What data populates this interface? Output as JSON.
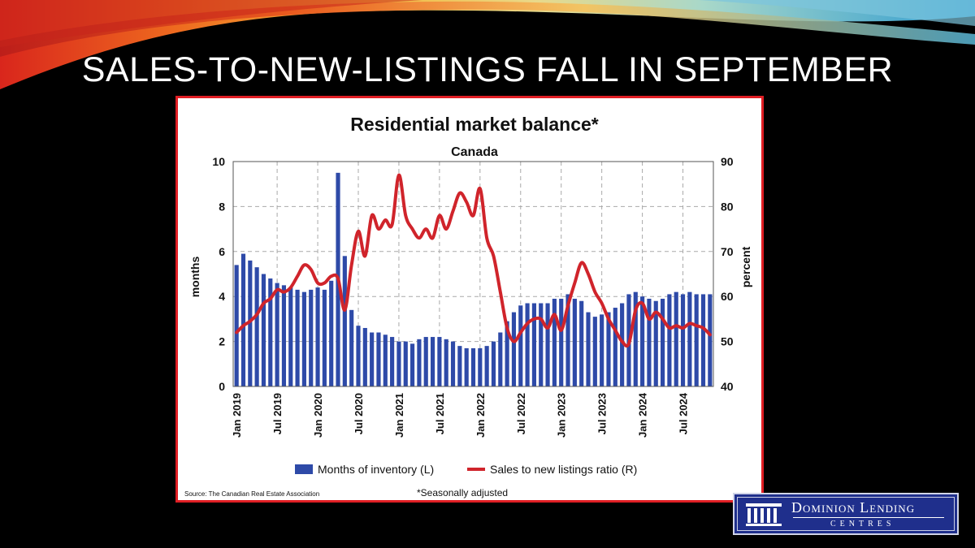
{
  "slide": {
    "title": "SALES-TO-NEW-LISTINGS FALL IN SEPTEMBER"
  },
  "logo": {
    "line1": "Dominion Lending",
    "line2": "CENTRES"
  },
  "chart_data": {
    "type": "bar+line",
    "title": "Residential market balance*",
    "subtitle": "Canada",
    "ylabel_left": "months",
    "ylabel_right": "percent",
    "ylim_left": [
      0,
      10
    ],
    "ylim_right": [
      40,
      90
    ],
    "yticks_left": [
      "0",
      "2",
      "4",
      "6",
      "8",
      "10"
    ],
    "yticks_right": [
      "40",
      "50",
      "60",
      "70",
      "80",
      "90"
    ],
    "xtick_labels": [
      "Jan 2019",
      "Jul 2019",
      "Jan 2020",
      "Jul 2020",
      "Jan 2021",
      "Jul 2021",
      "Jan 2022",
      "Jul 2022",
      "Jan 2023",
      "Jul 2023",
      "Jan 2024",
      "Jul 2024"
    ],
    "grid": true,
    "legend_position": "bottom",
    "source": "Source: The Canadian Real Estate Association",
    "footnote": "*Seasonally adjusted",
    "series": [
      {
        "name": "Months of inventory (L)",
        "axis": "left",
        "type": "bar",
        "color": "#2e4aa8",
        "values": [
          5.4,
          5.9,
          5.6,
          5.3,
          5.0,
          4.8,
          4.6,
          4.5,
          4.4,
          4.3,
          4.2,
          4.3,
          4.4,
          4.3,
          4.7,
          9.5,
          5.8,
          3.4,
          2.7,
          2.6,
          2.4,
          2.4,
          2.3,
          2.2,
          2.0,
          2.0,
          1.9,
          2.1,
          2.2,
          2.2,
          2.2,
          2.1,
          2.0,
          1.8,
          1.7,
          1.7,
          1.7,
          1.8,
          2.0,
          2.4,
          2.9,
          3.3,
          3.6,
          3.7,
          3.7,
          3.7,
          3.7,
          3.9,
          3.9,
          4.1,
          3.9,
          3.8,
          3.3,
          3.1,
          3.2,
          3.3,
          3.5,
          3.7,
          4.1,
          4.2,
          4.0,
          3.9,
          3.8,
          3.9,
          4.1,
          4.2,
          4.1,
          4.2,
          4.1,
          4.1,
          4.1
        ]
      },
      {
        "name": "Sales to new listings ratio (R)",
        "axis": "right",
        "type": "line",
        "color": "#d0242b",
        "values": [
          52,
          53.5,
          54.5,
          56,
          58.5,
          59.5,
          61.5,
          61,
          62,
          64.5,
          67,
          66,
          63,
          63,
          64.5,
          64,
          57,
          67,
          74.5,
          69,
          78,
          75,
          77,
          76,
          87,
          78,
          75,
          73,
          75,
          73,
          78,
          75,
          79,
          83,
          81,
          78,
          84,
          73,
          69,
          61,
          53,
          50,
          52,
          54,
          55,
          55,
          53,
          56,
          52.5,
          58,
          63,
          67.5,
          65,
          61,
          58.5,
          55,
          52.5,
          50,
          49.5,
          57,
          58.5,
          55,
          56.5,
          55,
          53,
          53.5,
          53,
          54,
          53.5,
          53,
          51.5
        ]
      }
    ]
  }
}
